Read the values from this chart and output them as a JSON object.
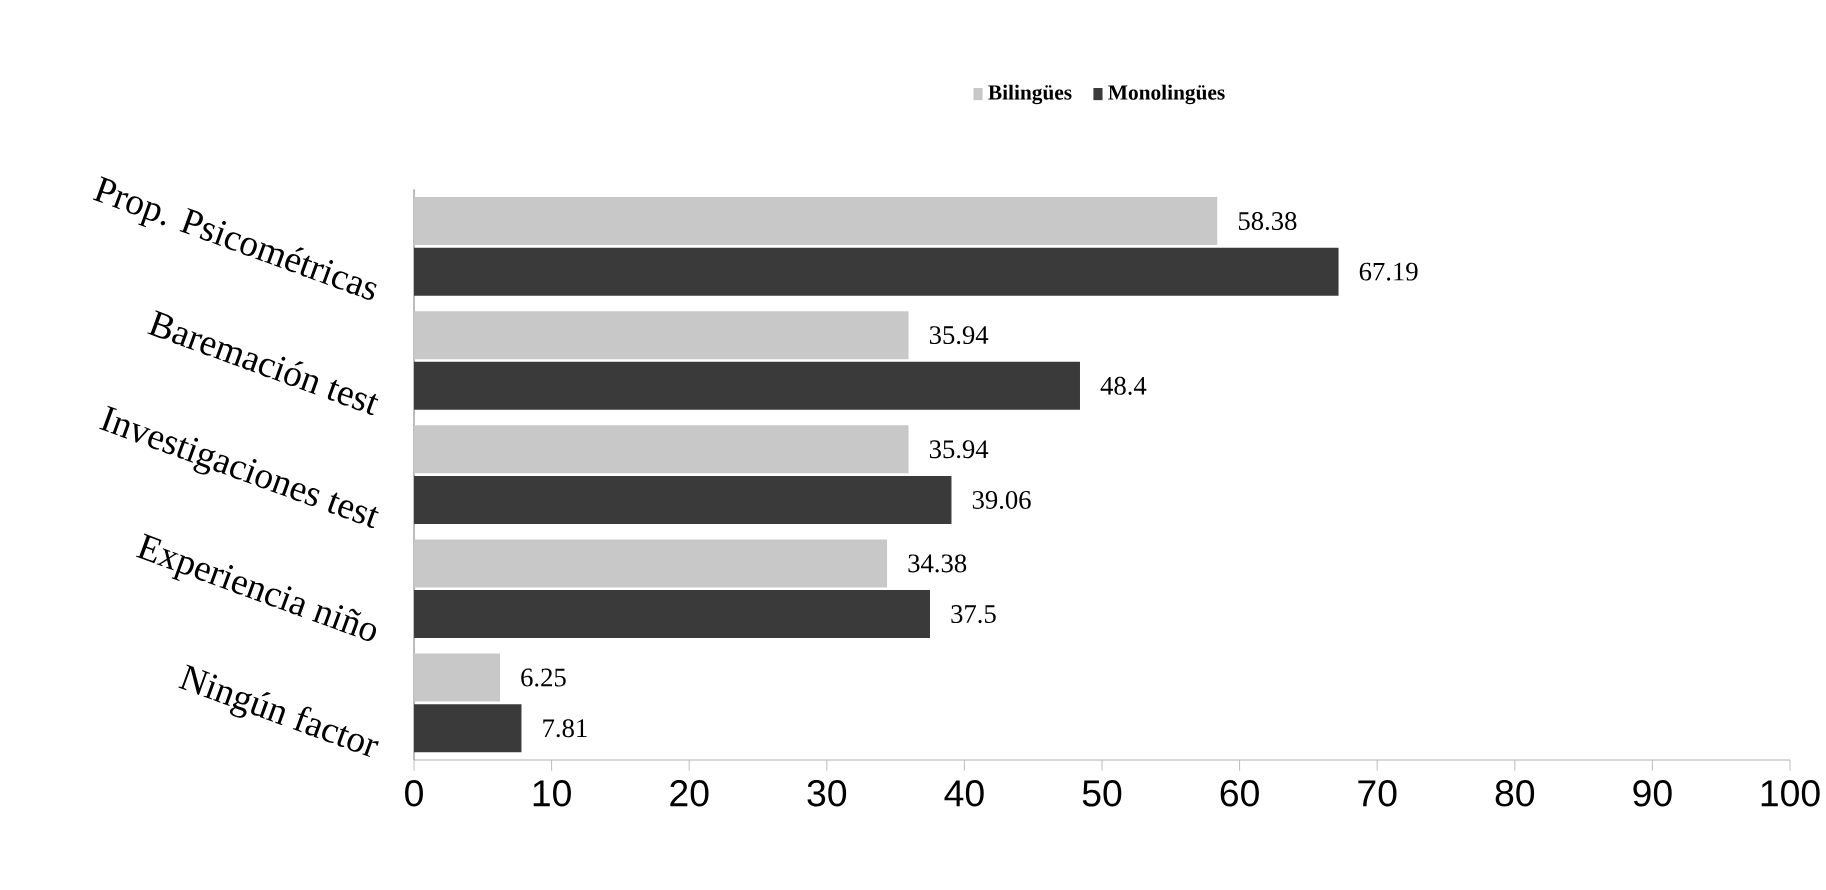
{
  "chart_data": {
    "type": "bar",
    "orientation": "horizontal",
    "categories": [
      "Prop. Psicométricas",
      "Baremación test",
      "Investigaciones test",
      "Experiencia niño",
      "Ningún factor"
    ],
    "series": [
      {
        "name": "Bilingües",
        "color": "#c8c8c8",
        "values": [
          58.38,
          35.94,
          35.94,
          34.38,
          6.25
        ]
      },
      {
        "name": "Monolingües",
        "color": "#3a3a3a",
        "values": [
          67.19,
          48.4,
          39.06,
          37.5,
          7.81
        ]
      }
    ],
    "xlim": [
      0,
      100
    ],
    "xticks": [
      0,
      10,
      20,
      30,
      40,
      50,
      60,
      70,
      80,
      90,
      100
    ],
    "data_labels": true,
    "legend": "top"
  }
}
